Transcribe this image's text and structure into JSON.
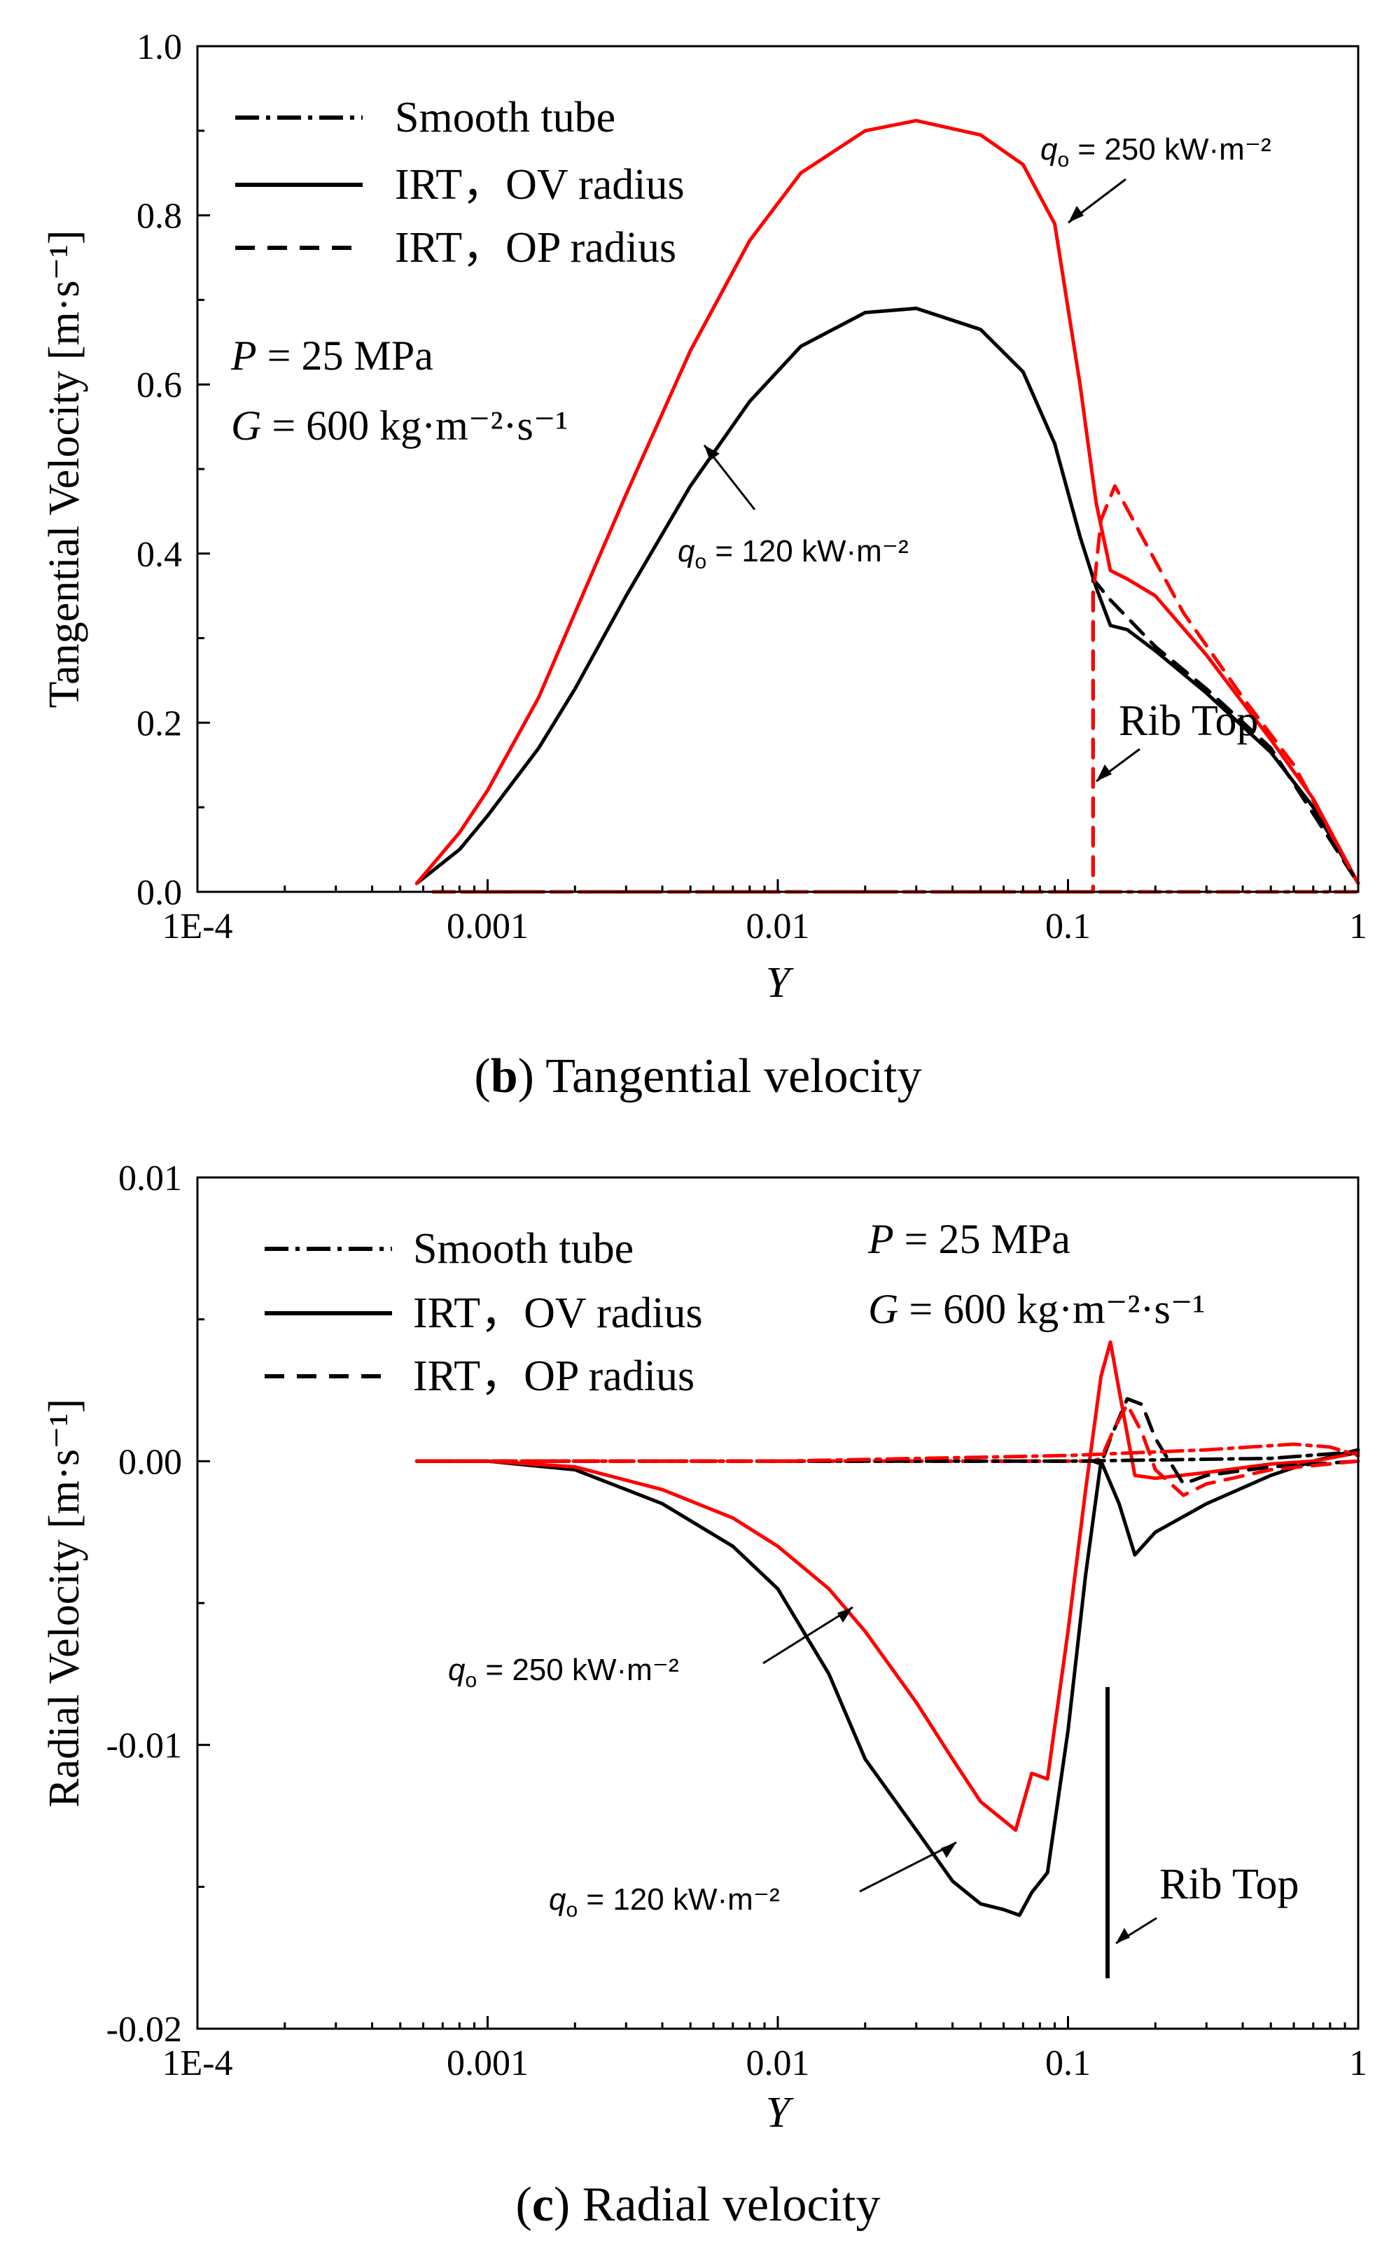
{
  "chart_data": [
    {
      "type": "line",
      "title": "",
      "caption": {
        "label": "b",
        "text": "Tangential velocity"
      },
      "xlabel": "Y",
      "ylabel": "Tangential Velocity [m·s⁻¹]",
      "xscale": "log",
      "xlim": [
        0.0001,
        1
      ],
      "ylim": [
        0.0,
        1.0
      ],
      "xticks": [
        {
          "value": 0.0001,
          "label": "1E-4"
        },
        {
          "value": 0.001,
          "label": "0.001"
        },
        {
          "value": 0.01,
          "label": "0.01"
        },
        {
          "value": 0.1,
          "label": "0.1"
        },
        {
          "value": 1,
          "label": "1"
        }
      ],
      "yticks": [
        {
          "value": 0.0,
          "label": "0.0"
        },
        {
          "value": 0.2,
          "label": "0.2"
        },
        {
          "value": 0.4,
          "label": "0.4"
        },
        {
          "value": 0.6,
          "label": "0.6"
        },
        {
          "value": 0.8,
          "label": "0.8"
        },
        {
          "value": 1.0,
          "label": "1.0"
        }
      ],
      "legend": {
        "position": "top-left",
        "entries": [
          {
            "label": "Smooth tube",
            "style": "dashdot"
          },
          {
            "label": "IRT，OV radius",
            "style": "solid"
          },
          {
            "label": "IRT，OP radius",
            "style": "dashed"
          }
        ]
      },
      "conditions": {
        "pressure": "= 25 MPa",
        "mass_flux": "= 600 kg·m⁻²·s⁻¹"
      },
      "series": [
        {
          "name": "IRT, OV radius, q=120",
          "color": "#000000",
          "style": "solid",
          "x": [
            0.00057,
            0.0008,
            0.001,
            0.0015,
            0.002,
            0.003,
            0.005,
            0.008,
            0.012,
            0.02,
            0.03,
            0.05,
            0.07,
            0.09,
            0.11,
            0.125,
            0.14,
            0.16,
            0.2,
            0.3,
            0.5,
            0.7,
            1.0
          ],
          "y": [
            0.01,
            0.05,
            0.09,
            0.17,
            0.24,
            0.35,
            0.48,
            0.58,
            0.645,
            0.685,
            0.69,
            0.665,
            0.615,
            0.53,
            0.42,
            0.36,
            0.315,
            0.31,
            0.285,
            0.235,
            0.165,
            0.1,
            0.01
          ]
        },
        {
          "name": "IRT, OV radius, q=250",
          "color": "#ff0000",
          "style": "solid",
          "x": [
            0.00057,
            0.0008,
            0.001,
            0.0015,
            0.002,
            0.003,
            0.005,
            0.008,
            0.012,
            0.02,
            0.03,
            0.05,
            0.07,
            0.09,
            0.11,
            0.125,
            0.14,
            0.16,
            0.2,
            0.3,
            0.5,
            0.7,
            1.0
          ],
          "y": [
            0.01,
            0.07,
            0.12,
            0.23,
            0.33,
            0.47,
            0.64,
            0.77,
            0.85,
            0.9,
            0.912,
            0.895,
            0.86,
            0.79,
            0.6,
            0.46,
            0.38,
            0.37,
            0.35,
            0.28,
            0.18,
            0.11,
            0.01
          ]
        },
        {
          "name": "IRT, OP radius, q=120",
          "color": "#000000",
          "style": "dashed",
          "x": [
            0.00065,
            0.122,
            0.122,
            0.14,
            0.2,
            0.3,
            0.5,
            1.0
          ],
          "y": [
            0.0,
            0.0,
            0.37,
            0.345,
            0.29,
            0.24,
            0.17,
            0.01
          ]
        },
        {
          "name": "IRT, OP radius, q=250",
          "color": "#ff0000",
          "style": "dashed",
          "x": [
            0.00065,
            0.122,
            0.122,
            0.13,
            0.145,
            0.18,
            0.25,
            0.4,
            0.6,
            1.0
          ],
          "y": [
            0.0,
            0.0,
            0.35,
            0.44,
            0.48,
            0.42,
            0.33,
            0.23,
            0.15,
            0.01
          ]
        },
        {
          "name": "Smooth tube, q=120",
          "color": "#000000",
          "style": "dashdot",
          "x": [
            0.00065,
            1.0
          ],
          "y": [
            0.0,
            0.0
          ]
        },
        {
          "name": "Smooth tube, q=250",
          "color": "#ff0000",
          "style": "dashdot",
          "x": [
            0.00065,
            1.0
          ],
          "y": [
            0.0,
            0.0
          ]
        }
      ],
      "annotations": [
        {
          "text": "= 250 kW·m⁻²",
          "prefix": "q",
          "sub": "o",
          "x": 0.16,
          "y": 0.86
        },
        {
          "text": "= 120 kW·m⁻²",
          "prefix": "q",
          "sub": "o",
          "x": 0.006,
          "y": 0.42
        },
        {
          "text": "Rib Top",
          "x": 0.14,
          "y": 0.12
        }
      ]
    },
    {
      "type": "line",
      "title": "",
      "caption": {
        "label": "c",
        "text": "Radial velocity"
      },
      "xlabel": "Y",
      "ylabel": "Radial Velocity [m·s⁻¹]",
      "xscale": "log",
      "xlim": [
        0.0001,
        1
      ],
      "ylim": [
        -0.02,
        0.01
      ],
      "xticks": [
        {
          "value": 0.0001,
          "label": "1E-4"
        },
        {
          "value": 0.001,
          "label": "0.001"
        },
        {
          "value": 0.01,
          "label": "0.01"
        },
        {
          "value": 0.1,
          "label": "0.1"
        },
        {
          "value": 1,
          "label": "1"
        }
      ],
      "yticks": [
        {
          "value": -0.02,
          "label": "-0.02"
        },
        {
          "value": -0.01,
          "label": "-0.01"
        },
        {
          "value": 0.0,
          "label": "0.00"
        },
        {
          "value": 0.01,
          "label": "0.01"
        }
      ],
      "legend": {
        "position": "top-left",
        "entries": [
          {
            "label": "Smooth tube",
            "style": "dashdot"
          },
          {
            "label": "IRT，OV radius",
            "style": "solid"
          },
          {
            "label": "IRT，OP radius",
            "style": "dashed"
          }
        ]
      },
      "conditions": {
        "pressure": "= 25 MPa",
        "mass_flux": "= 600 kg·m⁻²·s⁻¹"
      },
      "series": [
        {
          "name": "IRT, OV radius, q=120",
          "color": "#000000",
          "style": "solid",
          "x": [
            0.00057,
            0.001,
            0.002,
            0.004,
            0.007,
            0.01,
            0.015,
            0.02,
            0.03,
            0.04,
            0.05,
            0.06,
            0.068,
            0.075,
            0.085,
            0.1,
            0.115,
            0.13,
            0.15,
            0.17,
            0.2,
            0.3,
            0.5,
            0.7,
            1.0
          ],
          "y": [
            0.0,
            0.0,
            -0.0003,
            -0.0015,
            -0.003,
            -0.0045,
            -0.0075,
            -0.0105,
            -0.013,
            -0.0148,
            -0.0156,
            -0.0158,
            -0.016,
            -0.0152,
            -0.0145,
            -0.0095,
            -0.004,
            0.0,
            -0.0015,
            -0.0033,
            -0.0025,
            -0.0015,
            -0.0005,
            0.0,
            0.0004
          ]
        },
        {
          "name": "IRT, OV radius, q=250",
          "color": "#ff0000",
          "style": "solid",
          "x": [
            0.00057,
            0.001,
            0.002,
            0.004,
            0.007,
            0.01,
            0.015,
            0.02,
            0.03,
            0.04,
            0.05,
            0.066,
            0.075,
            0.085,
            0.1,
            0.115,
            0.13,
            0.14,
            0.15,
            0.17,
            0.2,
            0.3,
            0.5,
            0.7,
            1.0
          ],
          "y": [
            0.0,
            0.0,
            -0.0002,
            -0.001,
            -0.002,
            -0.003,
            -0.0045,
            -0.006,
            -0.0085,
            -0.0105,
            -0.012,
            -0.013,
            -0.011,
            -0.0112,
            -0.006,
            -0.001,
            0.003,
            0.0042,
            0.0025,
            -0.0005,
            -0.0006,
            -0.0004,
            -0.0001,
            0.0,
            0.0003
          ]
        },
        {
          "name": "IRT, OP radius, q=120",
          "color": "#000000",
          "style": "dashed",
          "x": [
            0.00065,
            0.122,
            0.13,
            0.14,
            0.16,
            0.18,
            0.2,
            0.25,
            0.3,
            0.5,
            1.0
          ],
          "y": [
            0.0,
            0.0,
            -0.0001,
            0.0008,
            0.0022,
            0.002,
            0.0008,
            -0.0008,
            -0.0005,
            -0.0002,
            0.0
          ]
        },
        {
          "name": "IRT, OP radius, q=250",
          "color": "#ff0000",
          "style": "dashed",
          "x": [
            0.00065,
            0.122,
            0.13,
            0.145,
            0.16,
            0.18,
            0.2,
            0.25,
            0.3,
            0.5,
            1.0
          ],
          "y": [
            0.0,
            0.0,
            0.0001,
            0.0012,
            0.002,
            0.001,
            -0.0003,
            -0.0012,
            -0.0008,
            -0.0003,
            0.0
          ]
        },
        {
          "name": "Smooth tube, q=120",
          "color": "#000000",
          "style": "dashdot",
          "x": [
            0.00057,
            0.01,
            0.1,
            0.5,
            0.9,
            1.0
          ],
          "y": [
            0.0,
            0.0,
            0.0,
            0.0001,
            0.0003,
            0.0002
          ]
        },
        {
          "name": "Smooth tube, q=250",
          "color": "#ff0000",
          "style": "dashdot",
          "x": [
            0.00057,
            0.01,
            0.1,
            0.3,
            0.6,
            0.8,
            1.0
          ],
          "y": [
            0.0,
            0.0,
            0.0002,
            0.0004,
            0.0006,
            0.0005,
            0.0002
          ]
        }
      ],
      "annotations": [
        {
          "text": "= 250 kW·m⁻²",
          "prefix": "q",
          "sub": "o",
          "x": 0.002,
          "y": -0.0077
        },
        {
          "text": "= 120 kW·m⁻²",
          "prefix": "q",
          "sub": "o",
          "x": 0.002,
          "y": -0.0153
        },
        {
          "text": "Rib Top",
          "x": 0.2,
          "y": -0.0155
        }
      ]
    }
  ]
}
